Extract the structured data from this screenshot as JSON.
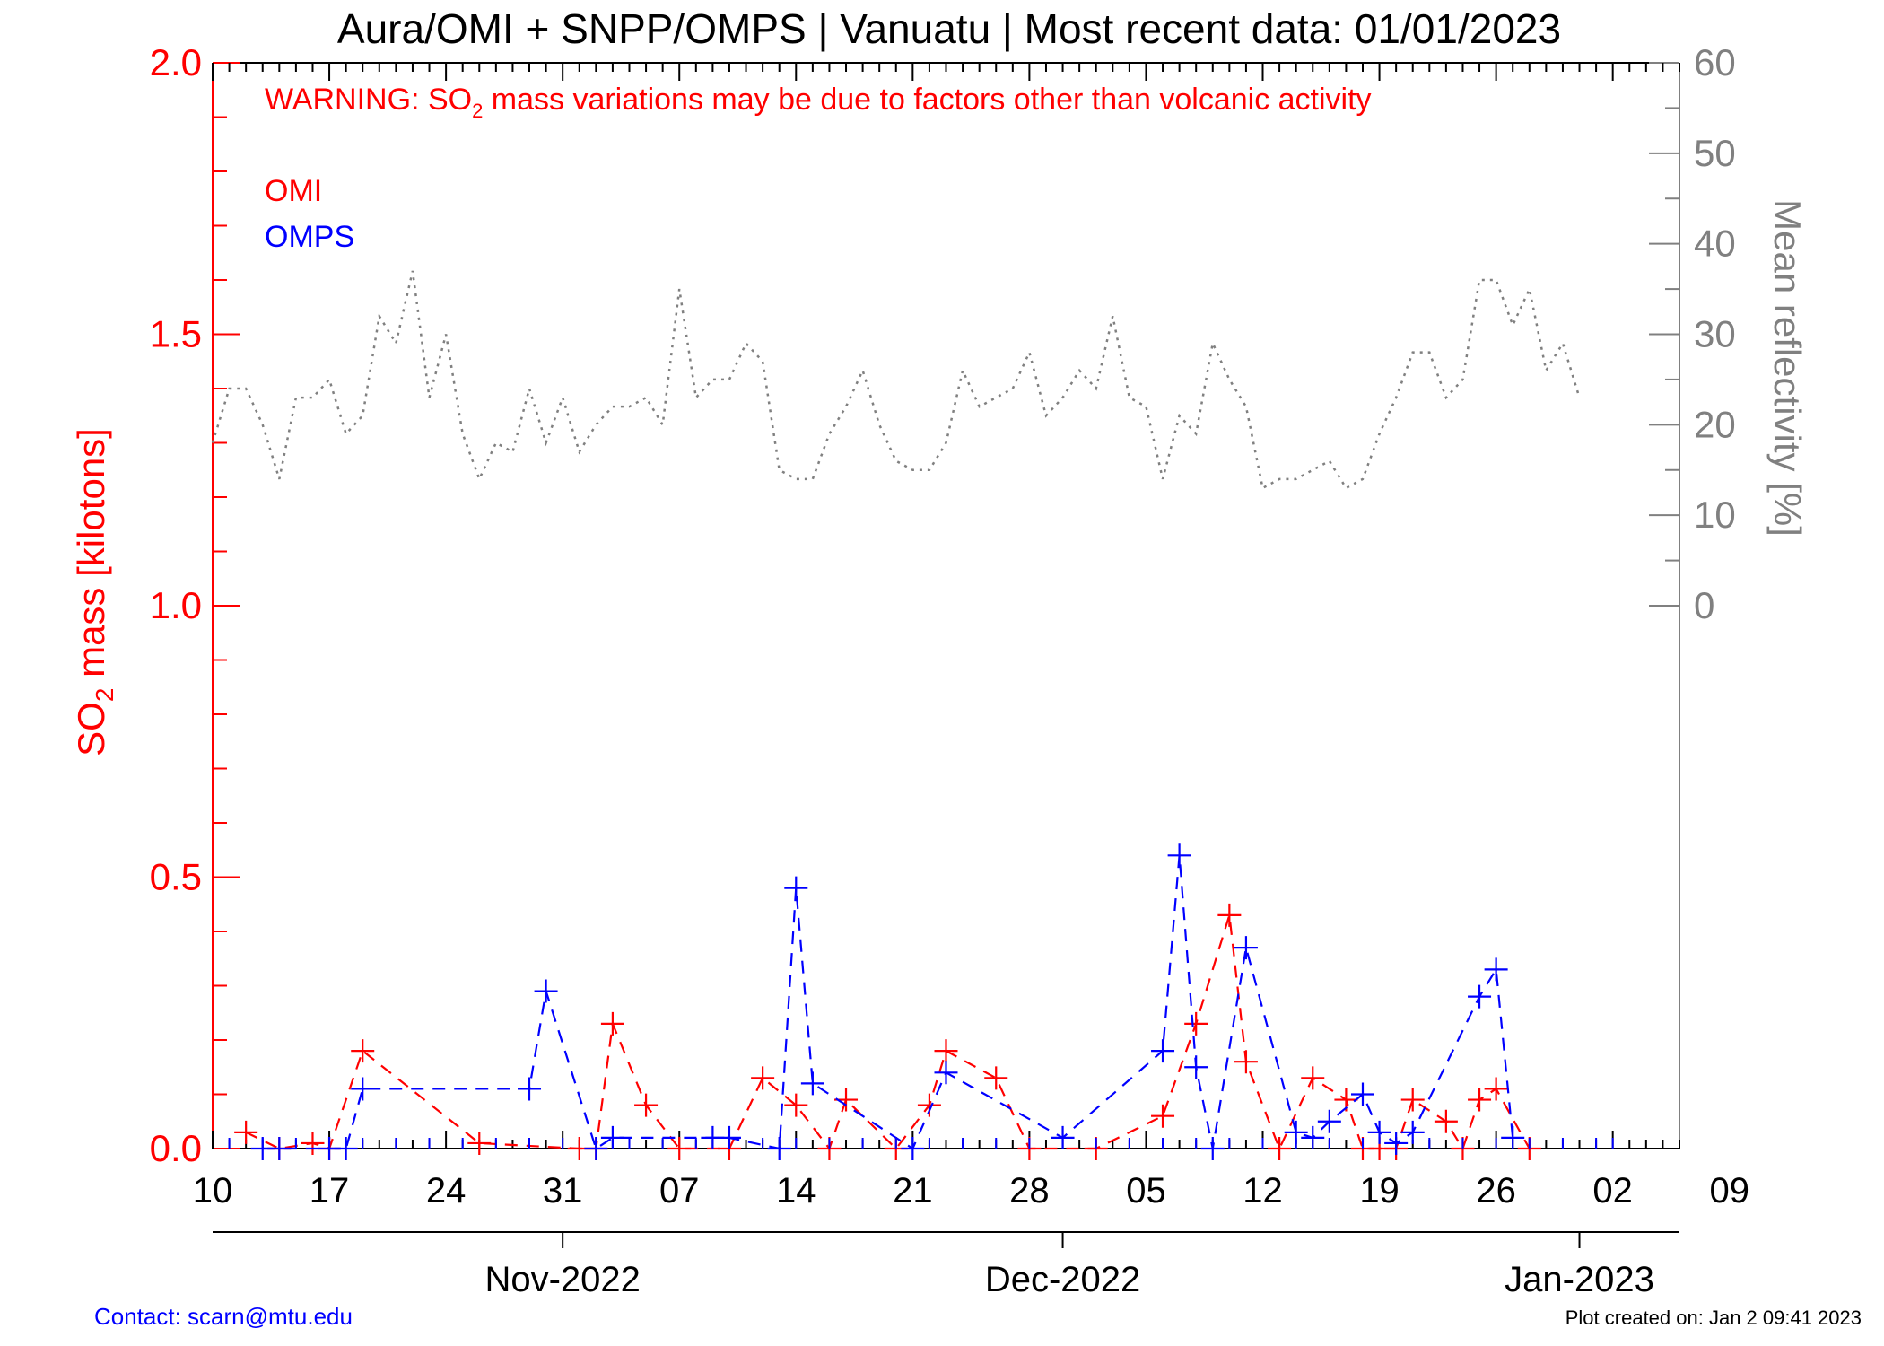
{
  "chart_data": {
    "type": "line",
    "title": "Aura/OMI + SNPP/OMPS | Vanuatu | Most recent data: 01/01/2023",
    "warning": {
      "before": "WARNING: SO",
      "sub": "2",
      "after": " mass variations may be due to factors other than volcanic activity"
    },
    "ylabel_left": {
      "before": "SO",
      "sub": "2",
      "after": " mass [kilotons]"
    },
    "ylabel_right": "Mean reflectivity [%]",
    "xlim": [
      0,
      88
    ],
    "x_origin_label": "2022-10-10 (x = days since)",
    "ylim_left": [
      0,
      2.0
    ],
    "ylim_right": [
      -60,
      60
    ],
    "left_ticks": [
      {
        "v": 0.0,
        "label": "0.0"
      },
      {
        "v": 0.5,
        "label": "0.5"
      },
      {
        "v": 1.0,
        "label": "1.0"
      },
      {
        "v": 1.5,
        "label": "1.5"
      },
      {
        "v": 2.0,
        "label": "2.0"
      }
    ],
    "right_ticks": [
      {
        "v": 0,
        "label": "0"
      },
      {
        "v": 10,
        "label": "10"
      },
      {
        "v": 20,
        "label": "20"
      },
      {
        "v": 30,
        "label": "30"
      },
      {
        "v": 40,
        "label": "40"
      },
      {
        "v": 50,
        "label": "50"
      },
      {
        "v": 60,
        "label": "60"
      }
    ],
    "x_ticks": [
      {
        "x": 0,
        "label": "10"
      },
      {
        "x": 7,
        "label": "17"
      },
      {
        "x": 14,
        "label": "24"
      },
      {
        "x": 21,
        "label": "31"
      },
      {
        "x": 28,
        "label": "07"
      },
      {
        "x": 35,
        "label": "14"
      },
      {
        "x": 42,
        "label": "21"
      },
      {
        "x": 49,
        "label": "28"
      },
      {
        "x": 56,
        "label": "05"
      },
      {
        "x": 63,
        "label": "12"
      },
      {
        "x": 70,
        "label": "19"
      },
      {
        "x": 77,
        "label": "26"
      },
      {
        "x": 84,
        "label": "02"
      },
      {
        "x": 91,
        "label": "09"
      }
    ],
    "month_ticks": [
      {
        "x": 21,
        "label": "Nov-2022"
      },
      {
        "x": 51,
        "label": "Dec-2022"
      },
      {
        "x": 82,
        "label": "Jan-2023"
      }
    ],
    "series": [
      {
        "name": "OMI",
        "axis": "left",
        "color": "#ff0000",
        "style": "dashed",
        "marker": "plus",
        "points": [
          [
            2,
            0.03
          ],
          [
            4,
            0.0
          ],
          [
            6,
            0.01
          ],
          [
            7,
            0.0
          ],
          [
            9,
            0.18
          ],
          [
            16,
            0.01
          ],
          [
            22,
            0.0
          ],
          [
            23,
            0.0
          ],
          [
            24,
            0.23
          ],
          [
            26,
            0.08
          ],
          [
            28,
            0.0
          ],
          [
            31,
            0.0
          ],
          [
            33,
            0.13
          ],
          [
            35,
            0.08
          ],
          [
            37,
            0.0
          ],
          [
            38,
            0.09
          ],
          [
            41,
            0.0
          ],
          [
            43,
            0.08
          ],
          [
            44,
            0.18
          ],
          [
            47,
            0.13
          ],
          [
            49,
            0.0
          ],
          [
            53,
            0.0
          ],
          [
            57,
            0.06
          ],
          [
            59,
            0.23
          ],
          [
            61,
            0.43
          ],
          [
            62,
            0.16
          ],
          [
            64,
            0.0
          ],
          [
            66,
            0.13
          ],
          [
            68,
            0.09
          ],
          [
            69,
            0.0
          ],
          [
            70,
            0.0
          ],
          [
            71,
            0.0
          ],
          [
            72,
            0.09
          ],
          [
            74,
            0.05
          ],
          [
            75,
            0.0
          ],
          [
            76,
            0.09
          ],
          [
            77,
            0.11
          ],
          [
            79,
            0.0
          ]
        ]
      },
      {
        "name": "OMPS",
        "axis": "left",
        "color": "#0000ff",
        "style": "dashed",
        "marker": "plus",
        "points": [
          [
            3,
            0.0
          ],
          [
            4,
            0.0
          ],
          [
            7,
            0.0
          ],
          [
            8,
            0.0
          ],
          [
            9,
            0.11
          ],
          [
            19,
            0.11
          ],
          [
            20,
            0.29
          ],
          [
            23,
            0.0
          ],
          [
            24,
            0.02
          ],
          [
            30,
            0.02
          ],
          [
            31,
            0.02
          ],
          [
            34,
            0.0
          ],
          [
            35,
            0.48
          ],
          [
            36,
            0.12
          ],
          [
            42,
            0.0
          ],
          [
            44,
            0.14
          ],
          [
            51,
            0.02
          ],
          [
            57,
            0.18
          ],
          [
            58,
            0.54
          ],
          [
            59,
            0.15
          ],
          [
            60,
            0.0
          ],
          [
            62,
            0.37
          ],
          [
            65,
            0.03
          ],
          [
            66,
            0.02
          ],
          [
            67,
            0.05
          ],
          [
            69,
            0.1
          ],
          [
            70,
            0.03
          ],
          [
            71,
            0.01
          ],
          [
            72,
            0.03
          ],
          [
            76,
            0.28
          ],
          [
            77,
            0.33
          ],
          [
            78,
            0.02
          ]
        ],
        "zero_markers_x": [
          1,
          3,
          5,
          7,
          9,
          11,
          13,
          15,
          17,
          19,
          21,
          23,
          25,
          27,
          29,
          31,
          33,
          35,
          37,
          39,
          41,
          43,
          45,
          47,
          49,
          51,
          53,
          55,
          57,
          59,
          61,
          63,
          65,
          67,
          69,
          71,
          73,
          75,
          77,
          79,
          81,
          83,
          84
        ]
      },
      {
        "name": "Mean reflectivity",
        "axis": "right",
        "color": "#808080",
        "style": "dotted",
        "points": [
          [
            0,
            18
          ],
          [
            1,
            24
          ],
          [
            2,
            24
          ],
          [
            3,
            20
          ],
          [
            4,
            14
          ],
          [
            5,
            23
          ],
          [
            6,
            23
          ],
          [
            7,
            25
          ],
          [
            8,
            19
          ],
          [
            9,
            21
          ],
          [
            10,
            32
          ],
          [
            11,
            29
          ],
          [
            12,
            37
          ],
          [
            13,
            23
          ],
          [
            14,
            30
          ],
          [
            15,
            19
          ],
          [
            16,
            14
          ],
          [
            17,
            18
          ],
          [
            18,
            17
          ],
          [
            19,
            24
          ],
          [
            20,
            18
          ],
          [
            21,
            23
          ],
          [
            22,
            17
          ],
          [
            23,
            20
          ],
          [
            24,
            22
          ],
          [
            25,
            22
          ],
          [
            26,
            23
          ],
          [
            27,
            20
          ],
          [
            28,
            35
          ],
          [
            29,
            23
          ],
          [
            30,
            25
          ],
          [
            31,
            25
          ],
          [
            32,
            29
          ],
          [
            33,
            27
          ],
          [
            34,
            15
          ],
          [
            35,
            14
          ],
          [
            36,
            14
          ],
          [
            37,
            19
          ],
          [
            38,
            22
          ],
          [
            39,
            26
          ],
          [
            40,
            20
          ],
          [
            41,
            16
          ],
          [
            42,
            15
          ],
          [
            43,
            15
          ],
          [
            44,
            18
          ],
          [
            45,
            26
          ],
          [
            46,
            22
          ],
          [
            47,
            23
          ],
          [
            48,
            24
          ],
          [
            49,
            28
          ],
          [
            50,
            21
          ],
          [
            51,
            23
          ],
          [
            52,
            26
          ],
          [
            53,
            24
          ],
          [
            54,
            32
          ],
          [
            55,
            23
          ],
          [
            56,
            22
          ],
          [
            57,
            14
          ],
          [
            58,
            21
          ],
          [
            59,
            19
          ],
          [
            60,
            29
          ],
          [
            61,
            25
          ],
          [
            62,
            22
          ],
          [
            63,
            13
          ],
          [
            64,
            14
          ],
          [
            65,
            14
          ],
          [
            66,
            15
          ],
          [
            67,
            16
          ],
          [
            68,
            13
          ],
          [
            69,
            14
          ],
          [
            70,
            19
          ],
          [
            71,
            23
          ],
          [
            72,
            28
          ],
          [
            73,
            28
          ],
          [
            74,
            23
          ],
          [
            75,
            25
          ],
          [
            76,
            36
          ],
          [
            77,
            36
          ],
          [
            78,
            31
          ],
          [
            79,
            35
          ],
          [
            80,
            26
          ],
          [
            81,
            29
          ],
          [
            82,
            23
          ]
        ]
      }
    ],
    "legend": [
      {
        "label": "OMI",
        "color": "#ff0000"
      },
      {
        "label": "OMPS",
        "color": "#0000ff"
      }
    ],
    "footer_left": "Contact: scarn@mtu.edu",
    "footer_right": "Plot created on: Jan  2 09:41 2023"
  }
}
